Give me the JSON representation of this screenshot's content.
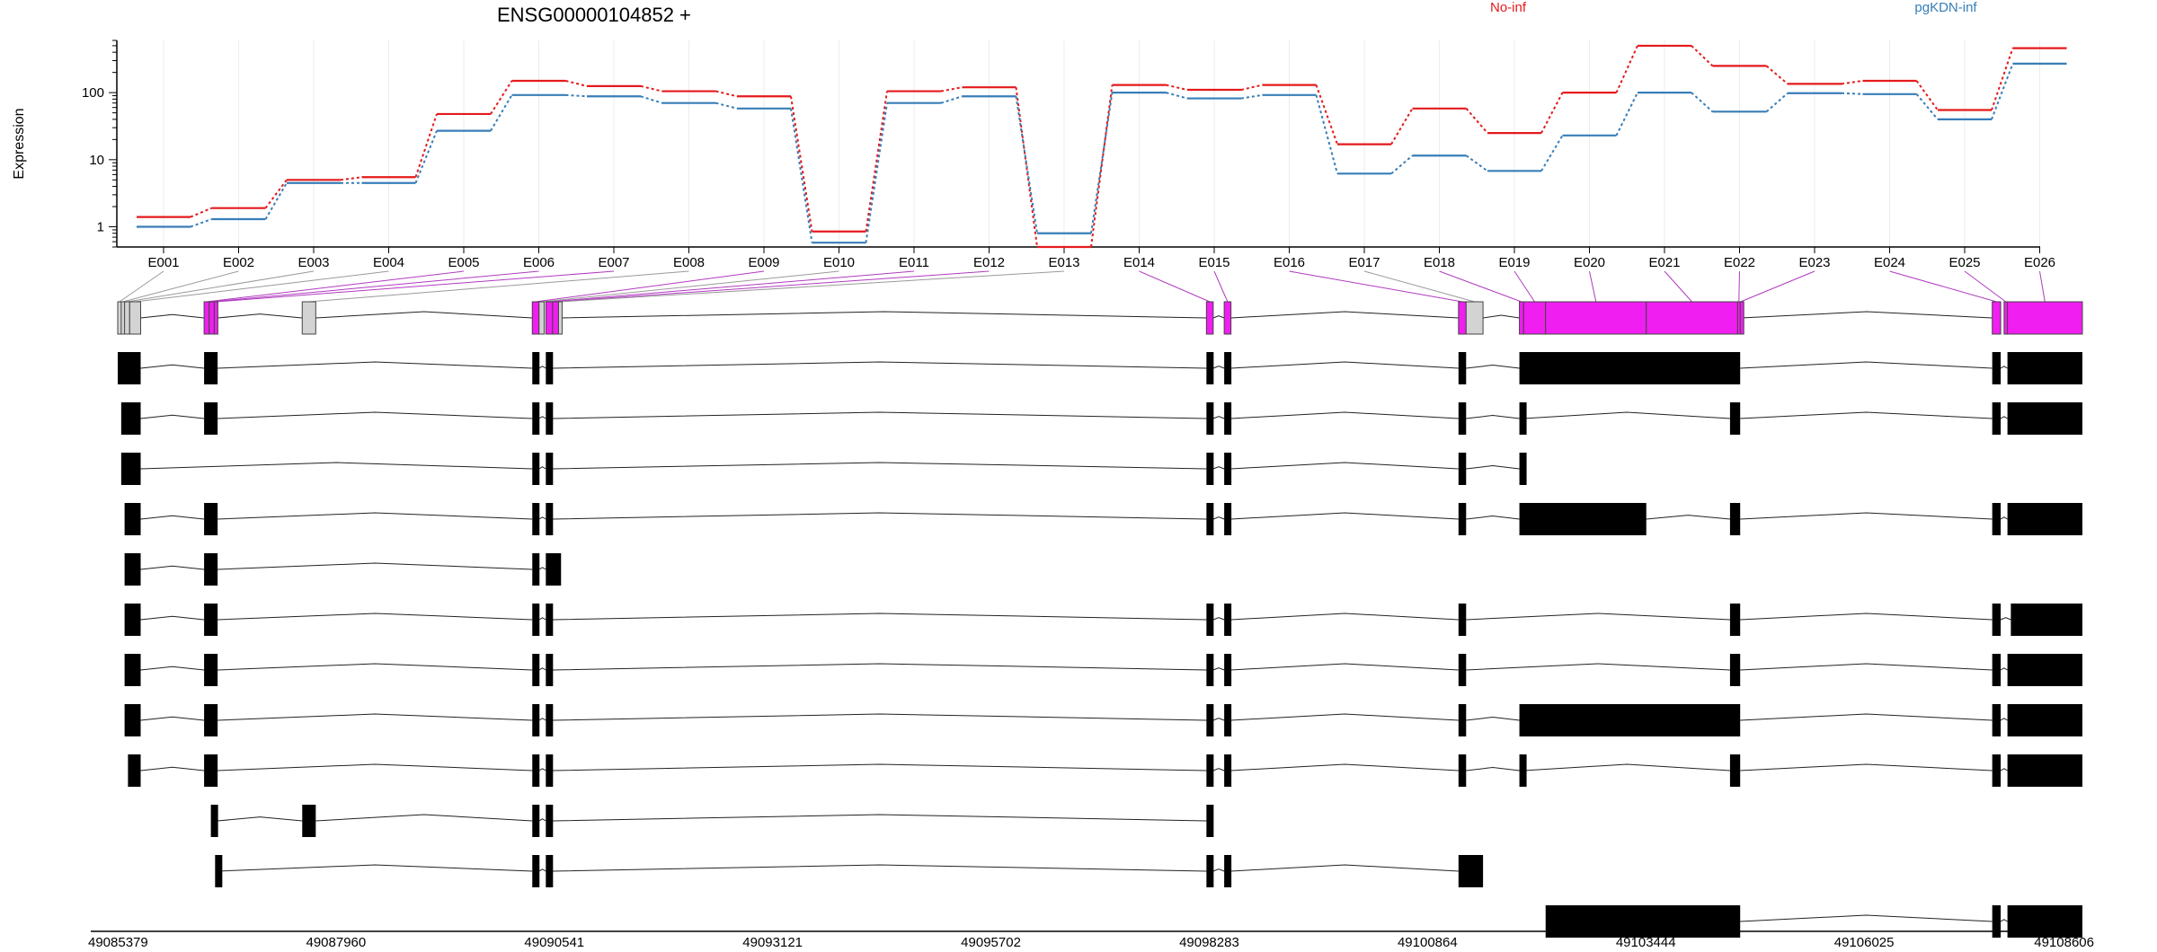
{
  "chart_data": {
    "type": "line",
    "title": "ENSG00000104852 +",
    "ylabel": "Expression",
    "yscale": "log",
    "ylim": [
      0.5,
      600
    ],
    "ytick_labels": [
      "1",
      "10",
      "100"
    ],
    "grid": true,
    "legend_placement": "top-right",
    "categories": [
      "E001",
      "E002",
      "E003",
      "E004",
      "E005",
      "E006",
      "E007",
      "E008",
      "E009",
      "E010",
      "E011",
      "E012",
      "E013",
      "E014",
      "E015",
      "E016",
      "E017",
      "E018",
      "E019",
      "E020",
      "E021",
      "E022",
      "E023",
      "E024",
      "E025",
      "E026"
    ],
    "series": [
      {
        "name": "No-inf",
        "color": "#e41a1c",
        "values": [
          1.4,
          1.9,
          5.0,
          5.5,
          48,
          150,
          125,
          105,
          88,
          0.85,
          105,
          120,
          0.5,
          130,
          110,
          130,
          17,
          58,
          25,
          100,
          500,
          250,
          135,
          150,
          55,
          460
        ]
      },
      {
        "name": "pgKDN-inf",
        "color": "#377eb8",
        "values": [
          1.0,
          1.3,
          4.5,
          4.5,
          27,
          92,
          88,
          70,
          58,
          0.58,
          70,
          88,
          0.8,
          100,
          82,
          92,
          6.2,
          11.5,
          6.8,
          23,
          100,
          52,
          98,
          95,
          40,
          270
        ]
      }
    ],
    "genomic_axis": {
      "tick_labels": [
        "49085379",
        "49087960",
        "49090541",
        "49093121",
        "49095702",
        "49098283",
        "49100864",
        "49103444",
        "49106025",
        "49108606"
      ],
      "range": [
        49085379,
        49108606
      ]
    },
    "exon_bins": [
      {
        "id": "E001",
        "start": 49085379,
        "end": 49085420,
        "signif": false
      },
      {
        "id": "E002",
        "start": 49085420,
        "end": 49085460,
        "signif": false
      },
      {
        "id": "E003",
        "start": 49085460,
        "end": 49085520,
        "signif": false
      },
      {
        "id": "E004",
        "start": 49085520,
        "end": 49085650,
        "signif": false
      },
      {
        "id": "E005",
        "start": 49086400,
        "end": 49086460,
        "signif": true
      },
      {
        "id": "E006",
        "start": 49086460,
        "end": 49086520,
        "signif": true
      },
      {
        "id": "E007",
        "start": 49086520,
        "end": 49086560,
        "signif": true
      },
      {
        "id": "E008",
        "start": 49087560,
        "end": 49087720,
        "signif": false
      },
      {
        "id": "E009",
        "start": 49090280,
        "end": 49090360,
        "signif": true
      },
      {
        "id": "E010",
        "start": 49090360,
        "end": 49090420,
        "signif": false
      },
      {
        "id": "E011",
        "start": 49090440,
        "end": 49090520,
        "signif": true
      },
      {
        "id": "E012",
        "start": 49090520,
        "end": 49090590,
        "signif": true
      },
      {
        "id": "E013",
        "start": 49090590,
        "end": 49090620,
        "signif": false
      },
      {
        "id": "E014",
        "start": 49098250,
        "end": 49098330,
        "signif": true
      },
      {
        "id": "E015",
        "start": 49098460,
        "end": 49098540,
        "signif": true
      },
      {
        "id": "E016",
        "start": 49101230,
        "end": 49101320,
        "signif": true
      },
      {
        "id": "E017",
        "start": 49101320,
        "end": 49101520,
        "signif": false
      },
      {
        "id": "E018",
        "start": 49101950,
        "end": 49102000,
        "signif": true
      },
      {
        "id": "E019",
        "start": 49102000,
        "end": 49102260,
        "signif": true
      },
      {
        "id": "E020",
        "start": 49102260,
        "end": 49103450,
        "signif": true
      },
      {
        "id": "E021",
        "start": 49103450,
        "end": 49104530,
        "signif": true
      },
      {
        "id": "E022",
        "start": 49104530,
        "end": 49104560,
        "signif": true
      },
      {
        "id": "E023",
        "start": 49104560,
        "end": 49104570,
        "signif": true
      },
      {
        "id": "E024",
        "start": 49107540,
        "end": 49107640,
        "signif": true
      },
      {
        "id": "E025",
        "start": 49107680,
        "end": 49107720,
        "signif": true
      },
      {
        "id": "E026",
        "start": 49107720,
        "end": 49108606,
        "signif": true
      }
    ],
    "transcripts": [
      [
        [
          49085379,
          49085650
        ],
        [
          49086400,
          49086560
        ],
        [
          49090280,
          49090360
        ],
        [
          49090440,
          49090520
        ],
        [
          49098250,
          49098330
        ],
        [
          49098460,
          49098540
        ],
        [
          49101230,
          49101320
        ],
        [
          49101950,
          49104560
        ],
        [
          49107540,
          49107640
        ],
        [
          49107720,
          49108606
        ]
      ],
      [
        [
          49085420,
          49085650
        ],
        [
          49086400,
          49086560
        ],
        [
          49090280,
          49090360
        ],
        [
          49090440,
          49090520
        ],
        [
          49098250,
          49098330
        ],
        [
          49098460,
          49098540
        ],
        [
          49101230,
          49101320
        ],
        [
          49101950,
          49102000
        ],
        [
          49104440,
          49104560
        ],
        [
          49107540,
          49107640
        ],
        [
          49107720,
          49108606
        ]
      ],
      [
        [
          49085420,
          49085650
        ],
        [
          49090280,
          49090360
        ],
        [
          49090440,
          49090520
        ],
        [
          49098250,
          49098330
        ],
        [
          49098460,
          49098540
        ],
        [
          49101230,
          49101320
        ],
        [
          49101950,
          49102000
        ]
      ],
      [
        [
          49085460,
          49085650
        ],
        [
          49086400,
          49086560
        ],
        [
          49090280,
          49090360
        ],
        [
          49090440,
          49090520
        ],
        [
          49098250,
          49098330
        ],
        [
          49098460,
          49098540
        ],
        [
          49101230,
          49101320
        ],
        [
          49101950,
          49103450
        ],
        [
          49104440,
          49104560
        ],
        [
          49107540,
          49107640
        ],
        [
          49107720,
          49108606
        ]
      ],
      [
        [
          49085460,
          49085650
        ],
        [
          49086400,
          49086560
        ],
        [
          49090280,
          49090360
        ],
        [
          49090440,
          49090620
        ]
      ],
      [
        [
          49085460,
          49085650
        ],
        [
          49086400,
          49086560
        ],
        [
          49090280,
          49090360
        ],
        [
          49090440,
          49090520
        ],
        [
          49098250,
          49098330
        ],
        [
          49098460,
          49098540
        ],
        [
          49101230,
          49101320
        ],
        [
          49104440,
          49104560
        ],
        [
          49107540,
          49107640
        ],
        [
          49107760,
          49108606
        ]
      ],
      [
        [
          49085460,
          49085650
        ],
        [
          49086400,
          49086560
        ],
        [
          49090280,
          49090360
        ],
        [
          49090440,
          49090520
        ],
        [
          49098250,
          49098330
        ],
        [
          49098460,
          49098540
        ],
        [
          49101230,
          49101320
        ],
        [
          49104440,
          49104560
        ],
        [
          49107540,
          49107640
        ],
        [
          49107720,
          49108606
        ]
      ],
      [
        [
          49085460,
          49085650
        ],
        [
          49086400,
          49086560
        ],
        [
          49090280,
          49090360
        ],
        [
          49090440,
          49090520
        ],
        [
          49098250,
          49098330
        ],
        [
          49098460,
          49098540
        ],
        [
          49101230,
          49101320
        ],
        [
          49101950,
          49104560
        ],
        [
          49107540,
          49107640
        ],
        [
          49107720,
          49108606
        ]
      ],
      [
        [
          49085500,
          49085650
        ],
        [
          49086400,
          49086560
        ],
        [
          49090280,
          49090360
        ],
        [
          49090440,
          49090520
        ],
        [
          49098250,
          49098330
        ],
        [
          49098460,
          49098540
        ],
        [
          49101230,
          49101320
        ],
        [
          49101950,
          49102000
        ],
        [
          49104440,
          49104560
        ],
        [
          49107540,
          49107640
        ],
        [
          49107720,
          49108606
        ]
      ],
      [
        [
          49086480,
          49086560
        ],
        [
          49087560,
          49087720
        ],
        [
          49090280,
          49090360
        ],
        [
          49090440,
          49090520
        ],
        [
          49098250,
          49098330
        ]
      ],
      [
        [
          49086530,
          49086560
        ],
        [
          49090280,
          49090360
        ],
        [
          49090440,
          49090520
        ],
        [
          49098250,
          49098330
        ],
        [
          49098460,
          49098540
        ],
        [
          49101230,
          49101520
        ]
      ],
      [
        [
          49102260,
          49104560
        ],
        [
          49107540,
          49107640
        ],
        [
          49107720,
          49108606
        ]
      ]
    ]
  }
}
